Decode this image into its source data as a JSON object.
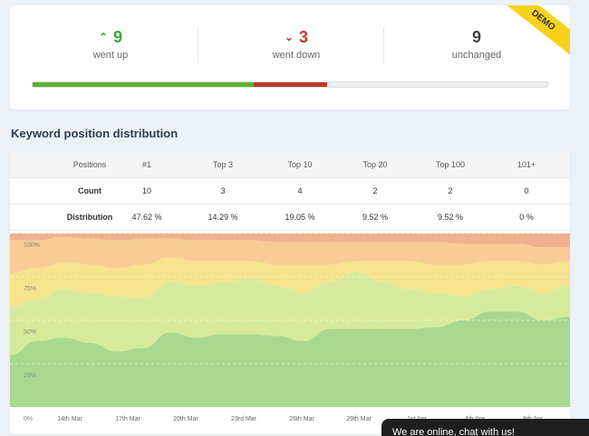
{
  "summary": {
    "went_up": {
      "value": "9",
      "label": "went up",
      "arrow_icon": "chevron-up-icon"
    },
    "went_down": {
      "value": "3",
      "label": "went down",
      "arrow_icon": "chevron-down-icon"
    },
    "unchanged": {
      "value": "9",
      "label": "unchanged"
    },
    "ribbon": "DEMO",
    "colors": {
      "up": "#5bb12f",
      "down": "#c0392b",
      "unchanged": "#efefef"
    }
  },
  "section_title": "Keyword position distribution",
  "table": {
    "header_label": "Positions",
    "columns": [
      "#1",
      "Top 3",
      "Top 10",
      "Top 20",
      "Top 100",
      "101+"
    ],
    "rows": [
      {
        "label": "Count",
        "values": [
          "10",
          "3",
          "4",
          "2",
          "2",
          "0"
        ]
      },
      {
        "label": "Distribution",
        "values": [
          "47.62 %",
          "14.29 %",
          "19.05 %",
          "9.52 %",
          "9.52 %",
          "0 %"
        ]
      }
    ]
  },
  "chart_data": {
    "type": "area",
    "x": [
      "14th Mar",
      "17th Mar",
      "20th Mar",
      "23rd Mar",
      "26th Mar",
      "29th Mar",
      "1st Apr",
      "4th Apr",
      "8th Apr"
    ],
    "y_ticks": [
      "100%",
      "75%",
      "50%",
      "25%",
      "0%"
    ],
    "ylim": [
      0,
      100
    ],
    "stacked_percent": true,
    "series_colors": [
      "#a8d98f",
      "#d7ea9b",
      "#f7e38e",
      "#f9cc97",
      "#f1b08e"
    ],
    "boundaries": [
      [
        30,
        38,
        40,
        37,
        32,
        34,
        43,
        40,
        42,
        42,
        41,
        38,
        45,
        45,
        45,
        45,
        46,
        50,
        55,
        55,
        50,
        52
      ],
      [
        58,
        62,
        68,
        66,
        64,
        63,
        72,
        70,
        72,
        74,
        70,
        66,
        72,
        78,
        72,
        68,
        66,
        64,
        68,
        70,
        66,
        70
      ],
      [
        77,
        80,
        83,
        82,
        80,
        82,
        86,
        84,
        84,
        84,
        82,
        82,
        82,
        84,
        84,
        84,
        82,
        82,
        84,
        84,
        82,
        84
      ],
      [
        96,
        96,
        98,
        97,
        96,
        97,
        97,
        96,
        96,
        96,
        95,
        95,
        95,
        95,
        95,
        95,
        95,
        94,
        94,
        94,
        92,
        92
      ]
    ]
  },
  "chat": {
    "text": "We are online, chat with us!"
  }
}
